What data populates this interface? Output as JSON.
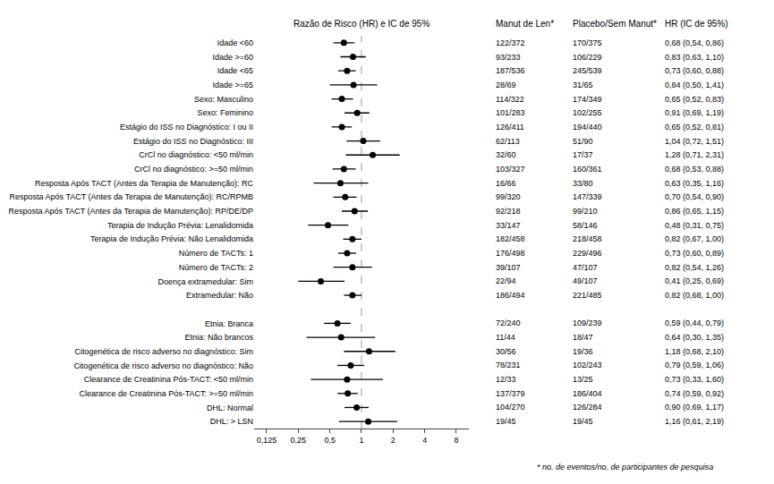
{
  "chart_data": {
    "type": "forest",
    "forest_header": "Razão de Risco (HR) e IC de 95%",
    "footnote": "* no. de eventos/no. de participantes de pesquisa",
    "categories": [
      "Idade <60",
      "Idade >=60",
      "Idade <65",
      "Idade >=65",
      "Sexo: Masculino",
      "Sexo: Feminino",
      "Estágio do ISS no Diagnóstico: I ou II",
      "Estágio do ISS no Diagnóstico: III",
      "CrCl no diagnóstico: <50 ml/min",
      "CrCl no diagnóstico: >=50 ml/min",
      "Resposta Após TACT (Antes da Terapia de Manutenção): RC",
      "Resposta Após TACT (Antes da Terapia de Manutenção): RC/RPMB",
      "Resposta Após TACT (Antes da Terapia de Manutenção): RP/DE/DP",
      "Terapia de Indução Prévia: Lenalidomida",
      "Terapia de Indução Prévia: Não Lenalidomida",
      "Número de TACTs: 1",
      "Número de TACTs: 2",
      "Doença extramedular: Sim",
      "Extramedular: Não",
      null,
      "Etnia: Branca",
      "Etnia: Não brancos",
      "Citogenética de risco adverso no diagnóstico: Sim",
      "Citogenética de risco adverso no diagnóstico: Não",
      "Clearance de Creatinina Pós-TACT: <50 ml/min",
      "Clearance de Creatinina Pós-TACT: >=50 ml/min",
      "DHL: Normal",
      "DHL: > LSN"
    ],
    "values": [
      0.68,
      0.83,
      0.73,
      0.84,
      0.65,
      0.91,
      0.65,
      1.04,
      1.28,
      0.68,
      0.63,
      0.7,
      0.86,
      0.48,
      0.82,
      0.73,
      0.82,
      0.41,
      0.82,
      null,
      0.59,
      0.64,
      1.18,
      0.79,
      0.73,
      0.74,
      0.9,
      1.16
    ],
    "ci_low": [
      0.54,
      0.63,
      0.6,
      0.5,
      0.52,
      0.69,
      0.52,
      0.72,
      0.71,
      0.53,
      0.35,
      0.54,
      0.65,
      0.31,
      0.67,
      0.6,
      0.54,
      0.25,
      0.68,
      null,
      0.44,
      0.3,
      0.68,
      0.59,
      0.33,
      0.59,
      0.69,
      0.61
    ],
    "ci_high": [
      0.86,
      1.1,
      0.88,
      1.41,
      0.83,
      1.19,
      0.81,
      1.51,
      2.31,
      0.88,
      1.16,
      0.9,
      1.15,
      0.75,
      1.0,
      0.89,
      1.26,
      0.69,
      1.0,
      null,
      0.79,
      1.35,
      2.1,
      1.06,
      1.6,
      0.92,
      1.17,
      2.19
    ],
    "columns": [
      {
        "header": "Manut de Len*",
        "values": [
          "122/372",
          "93/233",
          "187/536",
          "28/69",
          "114/322",
          "101/283",
          "126/411",
          "62/113",
          "32/60",
          "103/327",
          "16/66",
          "99/320",
          "92/218",
          "33/147",
          "182/458",
          "176/498",
          "39/107",
          "22/94",
          "186/494",
          null,
          "72/240",
          "11/44",
          "30/56",
          "78/231",
          "12/33",
          "137/379",
          "104/270",
          "19/45"
        ]
      },
      {
        "header": "Placebo/Sem Manut*",
        "values": [
          "170/375",
          "106/229",
          "245/539",
          "31/65",
          "174/349",
          "102/255",
          "194/440",
          "51/90",
          "17/37",
          "160/361",
          "33/80",
          "147/339",
          "99/210",
          "58/146",
          "218/458",
          "229/496",
          "47/107",
          "49/107",
          "221/485",
          null,
          "109/239",
          "18/47",
          "19/36",
          "102/243",
          "13/25",
          "186/404",
          "126/284",
          "19/45"
        ]
      },
      {
        "header": "HR (IC de 95%)",
        "values": [
          "0,68 (0,54, 0,86)",
          "0,83 (0,63, 1,10)",
          "0,73 (0,60, 0,88)",
          "0,84 (0,50, 1,41)",
          "0,65 (0,52, 0,83)",
          "0,91 (0,69, 1,19)",
          "0,65 (0,52, 0,81)",
          "1,04 (0,72, 1,51)",
          "1,28 (0,71, 2,31)",
          "0,68 (0,53, 0,88)",
          "0,63 (0,35, 1,16)",
          "0,70 (0,54, 0,90)",
          "0,86 (0,65, 1,15)",
          "0,48 (0,31, 0,75)",
          "0,82 (0,67, 1,00)",
          "0,73 (0,60, 0,89)",
          "0,82 (0,54, 1,26)",
          "0,41 (0,25, 0,69)",
          "0,82 (0,68, 1,00)",
          null,
          "0,59 (0,44, 0,79)",
          "0,64 (0,30, 1,35)",
          "1,18 (0,68, 2,10)",
          "0,79 (0,59, 1,06)",
          "0,73 (0,33, 1,60)",
          "0,74 (0,59, 0,92)",
          "0,90 (0,69, 1,17)",
          "1,16 (0,61, 2,19)"
        ]
      }
    ],
    "reference_line": 1,
    "log": "x",
    "xlim": [
      0.095,
      10.5
    ],
    "xticks": [
      {
        "value": 0.125,
        "label": "0,125"
      },
      {
        "value": 0.25,
        "label": "0,25"
      },
      {
        "value": 0.5,
        "label": "0,5"
      },
      1,
      2,
      4,
      8
    ],
    "grid": false,
    "color": "black"
  }
}
